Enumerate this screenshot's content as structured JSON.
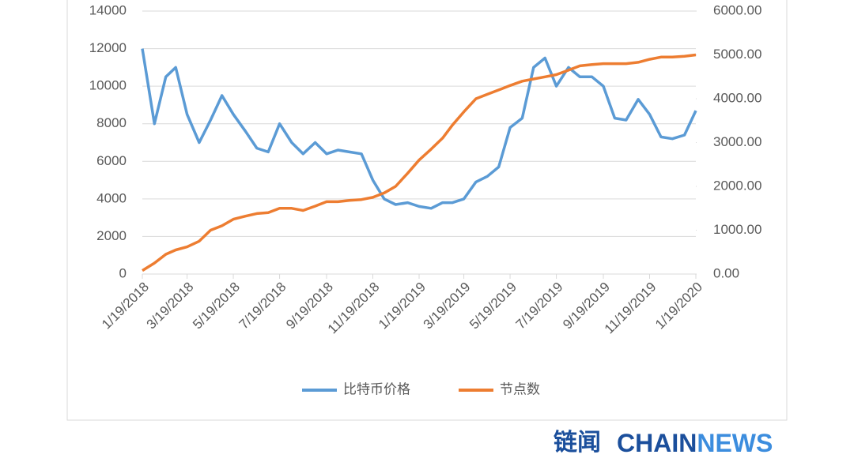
{
  "chart_data": {
    "type": "line",
    "x": [
      "1/19/2018",
      "2/4/2018",
      "2/19/2018",
      "3/4/2018",
      "3/19/2018",
      "4/4/2018",
      "4/19/2018",
      "5/4/2018",
      "5/19/2018",
      "6/4/2018",
      "6/19/2018",
      "7/4/2018",
      "7/19/2018",
      "8/4/2018",
      "8/19/2018",
      "9/4/2018",
      "9/19/2018",
      "10/4/2018",
      "10/19/2018",
      "11/4/2018",
      "11/19/2018",
      "12/4/2018",
      "12/19/2018",
      "1/4/2019",
      "1/19/2019",
      "2/4/2019",
      "2/19/2019",
      "3/4/2019",
      "3/19/2019",
      "4/4/2019",
      "4/19/2019",
      "5/4/2019",
      "5/19/2019",
      "6/4/2019",
      "6/19/2019",
      "7/4/2019",
      "7/19/2019",
      "8/4/2019",
      "8/19/2019",
      "9/4/2019",
      "9/19/2019",
      "10/4/2019",
      "10/19/2019",
      "11/4/2019",
      "11/19/2019",
      "12/4/2019",
      "12/19/2019",
      "1/4/2020",
      "1/19/2020"
    ],
    "xlim": [
      "1/19/2018",
      "1/19/2020"
    ],
    "xticks": [
      "1/19/2018",
      "3/19/2018",
      "5/19/2018",
      "7/19/2018",
      "9/19/2018",
      "11/19/2018",
      "1/19/2019",
      "3/19/2019",
      "5/19/2019",
      "7/19/2019",
      "9/19/2019",
      "11/19/2019",
      "1/19/2020"
    ],
    "series": [
      {
        "name": "比特币价格",
        "color": "#5b9bd5",
        "values": [
          12000,
          8000,
          10500,
          11000,
          8500,
          7000,
          8200,
          9500,
          8500,
          7600,
          6700,
          6500,
          8000,
          7000,
          6400,
          7000,
          6400,
          6600,
          6500,
          6400,
          5000,
          4000,
          3700,
          3800,
          3600,
          3500,
          3800,
          3800,
          4000,
          4900,
          5200,
          5700,
          7800,
          8300,
          11000,
          11500,
          10000,
          11000,
          10500,
          10500,
          10000,
          8300,
          8200,
          9300,
          8500,
          7300,
          7200,
          7400,
          8700
        ]
      },
      {
        "name": "节点数",
        "color": "#ed7d31",
        "axis": "y2",
        "values": [
          80,
          250,
          450,
          550,
          620,
          750,
          1000,
          1100,
          1250,
          1320,
          1380,
          1400,
          1500,
          1500,
          1450,
          1550,
          1650,
          1650,
          1680,
          1700,
          1750,
          1850,
          2000,
          2300,
          2600,
          2850,
          3100,
          3400,
          3700,
          4000,
          4100,
          4200,
          4300,
          4400,
          4450,
          4500,
          4550,
          4650,
          4750,
          4780,
          4800,
          4800,
          4800,
          4830,
          4900,
          4950,
          4950,
          4970,
          5000
        ]
      }
    ],
    "ylim": [
      0,
      14000
    ],
    "yticks": [
      0,
      2000,
      4000,
      6000,
      8000,
      10000,
      12000,
      14000
    ],
    "y2lim": [
      0,
      6000
    ],
    "y2ticks": [
      {
        "value": 0,
        "label": "0.00"
      },
      {
        "value": 1000,
        "label": "1000.00"
      },
      {
        "value": 2000,
        "label": "2000.00"
      },
      {
        "value": 3000,
        "label": "3000.00"
      },
      {
        "value": 4000,
        "label": "4000.00"
      },
      {
        "value": 5000,
        "label": "5000.00"
      },
      {
        "value": 6000,
        "label": "6000.00"
      }
    ],
    "grid": true,
    "legend": "bottom"
  },
  "watermark": {
    "cn": "链闻",
    "en1": "CHAIN",
    "en2": "NEWS"
  }
}
